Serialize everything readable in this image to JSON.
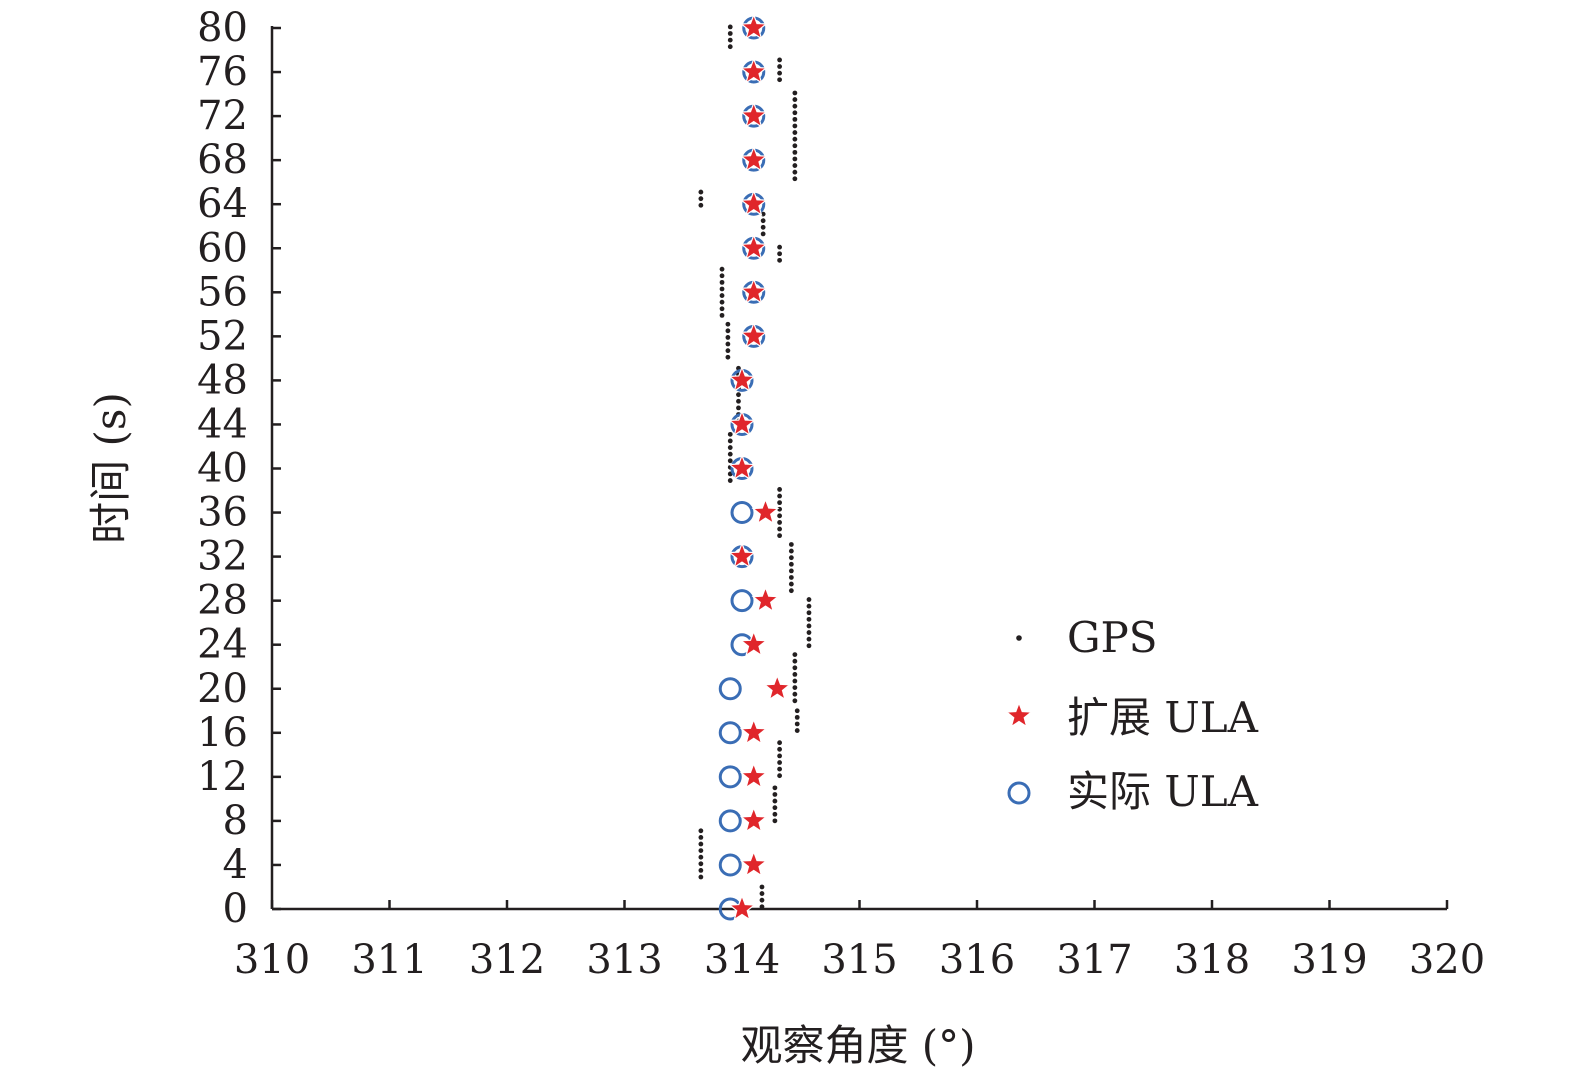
{
  "chart_data": {
    "type": "scatter",
    "title": "",
    "xlabel": "观察角度 (°)",
    "ylabel": "时间 (s)",
    "xlim": [
      310,
      320
    ],
    "ylim": [
      0,
      80
    ],
    "xticks": [
      310,
      311,
      312,
      313,
      314,
      315,
      316,
      317,
      318,
      319,
      320
    ],
    "yticks": [
      0,
      4,
      8,
      12,
      16,
      20,
      24,
      28,
      32,
      36,
      40,
      44,
      48,
      52,
      56,
      60,
      64,
      68,
      72,
      76,
      80
    ],
    "x_tick_labels": [
      "310",
      "311",
      "312",
      "313",
      "314",
      "315",
      "316",
      "317",
      "318",
      "319",
      "320"
    ],
    "y_tick_labels": [
      "0",
      "4",
      "8",
      "12",
      "16",
      "20",
      "24",
      "28",
      "32",
      "36",
      "40",
      "44",
      "48",
      "52",
      "56",
      "60",
      "64",
      "68",
      "72",
      "76",
      "80"
    ],
    "grid": false,
    "legend_position": "right",
    "series": [
      {
        "name": "GPS",
        "marker": "dot",
        "color": "#231f20",
        "segments": [
          {
            "x": 314.17,
            "y_start": -0.2,
            "y_end": 2.0
          },
          {
            "x": 313.65,
            "y_start": 2.9,
            "y_end": 7.1
          },
          {
            "x": 314.28,
            "y_start": 7.9,
            "y_end": 11.0
          },
          {
            "x": 314.32,
            "y_start": 11.9,
            "y_end": 15.1
          },
          {
            "x": 314.47,
            "y_start": 15.9,
            "y_end": 18.0
          },
          {
            "x": 314.45,
            "y_start": 18.9,
            "y_end": 23.1
          },
          {
            "x": 314.57,
            "y_start": 23.9,
            "y_end": 28.1
          },
          {
            "x": 314.42,
            "y_start": 28.9,
            "y_end": 33.1
          },
          {
            "x": 314.32,
            "y_start": 33.9,
            "y_end": 38.1
          },
          {
            "x": 313.9,
            "y_start": 38.9,
            "y_end": 43.1
          },
          {
            "x": 313.97,
            "y_start": 43.9,
            "y_end": 49.1
          },
          {
            "x": 313.88,
            "y_start": 49.9,
            "y_end": 53.1
          },
          {
            "x": 313.83,
            "y_start": 53.9,
            "y_end": 58.1
          },
          {
            "x": 314.32,
            "y_start": 58.9,
            "y_end": 60.1
          },
          {
            "x": 314.18,
            "y_start": 60.9,
            "y_end": 63.1
          },
          {
            "x": 313.65,
            "y_start": 63.9,
            "y_end": 65.1
          },
          {
            "x": 314.45,
            "y_start": 65.9,
            "y_end": 74.1
          },
          {
            "x": 314.32,
            "y_start": 74.9,
            "y_end": 77.1
          },
          {
            "x": 313.9,
            "y_start": 77.9,
            "y_end": 80.1
          }
        ]
      },
      {
        "name": "扩展 ULA",
        "marker": "star",
        "color": "#e0262b",
        "points": [
          [
            314.0,
            0
          ],
          [
            314.1,
            4
          ],
          [
            314.1,
            8
          ],
          [
            314.1,
            12
          ],
          [
            314.1,
            16
          ],
          [
            314.3,
            20
          ],
          [
            314.1,
            24
          ],
          [
            314.2,
            28
          ],
          [
            314.0,
            32
          ],
          [
            314.2,
            36
          ],
          [
            314.0,
            40
          ],
          [
            314.0,
            44
          ],
          [
            314.0,
            48
          ],
          [
            314.1,
            52
          ],
          [
            314.1,
            56
          ],
          [
            314.1,
            60
          ],
          [
            314.1,
            64
          ],
          [
            314.1,
            68
          ],
          [
            314.1,
            72
          ],
          [
            314.1,
            76
          ],
          [
            314.1,
            80
          ]
        ]
      },
      {
        "name": "实际 ULA",
        "marker": "circle",
        "color": "#3a6db5",
        "points": [
          [
            313.9,
            0
          ],
          [
            313.9,
            4
          ],
          [
            313.9,
            8
          ],
          [
            313.9,
            12
          ],
          [
            313.9,
            16
          ],
          [
            313.9,
            20
          ],
          [
            314.0,
            24
          ],
          [
            314.0,
            28
          ],
          [
            314.0,
            32
          ],
          [
            314.0,
            36
          ],
          [
            314.0,
            40
          ],
          [
            314.0,
            44
          ],
          [
            314.0,
            48
          ],
          [
            314.1,
            52
          ],
          [
            314.1,
            56
          ],
          [
            314.1,
            60
          ],
          [
            314.1,
            64
          ],
          [
            314.1,
            68
          ],
          [
            314.1,
            72
          ],
          [
            314.1,
            76
          ],
          [
            314.1,
            80
          ]
        ]
      }
    ]
  }
}
